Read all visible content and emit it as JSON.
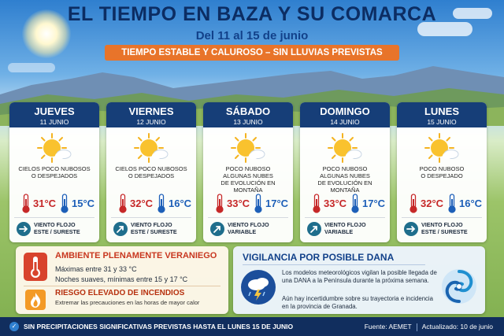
{
  "header": {
    "title": "EL TIEMPO EN BAZA Y SU COMARCA",
    "subtitle": "Del 11 al 15 de junio",
    "banner": "TIEMPO ESTABLE Y CALUROSO – SIN LLUVIAS PREVISTAS"
  },
  "days": [
    {
      "day": "JUEVES",
      "date": "11 JUNIO",
      "cond1": "CIELOS POCO NUBOSOS",
      "cond2": "O DESPEJADOS",
      "cond3": "",
      "tmax": "31°C",
      "tmin": "15°C",
      "wind1": "VIENTO FLOJO",
      "wind2": "ESTE / SURESTE",
      "wind_icon": "arrow-right-icon"
    },
    {
      "day": "VIERNES",
      "date": "12 JUNIO",
      "cond1": "CIELOS POCO NUBOSOS",
      "cond2": "O DESPEJADOS",
      "cond3": "",
      "tmax": "32°C",
      "tmin": "16°C",
      "wind1": "VIENTO FLOJO",
      "wind2": "ESTE / SURESTE",
      "wind_icon": "arrow-up-right-icon"
    },
    {
      "day": "SÁBADO",
      "date": "13 JUNIO",
      "cond1": "POCO NUBOSO",
      "cond2": "ALGUNAS NUBES",
      "cond3": "DE EVOLUCIÓN EN MONTAÑA",
      "tmax": "33°C",
      "tmin": "17°C",
      "wind1": "VIENTO FLOJO",
      "wind2": "VARIABLE",
      "wind_icon": "arrow-up-right-icon"
    },
    {
      "day": "DOMINGO",
      "date": "14 JUNIO",
      "cond1": "POCO NUBOSO",
      "cond2": "ALGUNAS NUBES",
      "cond3": "DE EVOLUCIÓN EN MONTAÑA",
      "tmax": "33°C",
      "tmin": "17°C",
      "wind1": "VIENTO FLOJO",
      "wind2": "VARIABLE",
      "wind_icon": "arrow-up-right-icon"
    },
    {
      "day": "LUNES",
      "date": "15 JUNIO",
      "cond1": "POCO NUBOSO",
      "cond2": "O DESPEJADO",
      "cond3": "",
      "tmax": "32°C",
      "tmin": "16°C",
      "wind1": "VIENTO FLOJO",
      "wind2": "ESTE / SURESTE",
      "wind_icon": "arrow-right-icon"
    }
  ],
  "heat": {
    "title": "AMBIENTE PLENAMENTE VERANIEGO",
    "line1": "Máximas entre 31 y 33 °C",
    "line2": "Noches suaves, mínimas entre 15 y 17 °C",
    "fire_title": "RIESGO ELEVADO DE INCENDIOS",
    "fire_text": "Extremar las precauciones en las horas de mayor calor"
  },
  "dana": {
    "title": "VIGILANCIA POR POSIBLE DANA",
    "p1": "Los modelos meteorológicos vigilan la posible llegada de una DANA a la Península durante la próxima semana.",
    "p2": "Aún hay incertidumbre sobre su trayectoria e incidencia en la provincia de Granada."
  },
  "footer": {
    "left": "SIN PRECIPITACIONES SIGNIFICATIVAS PREVISTAS HASTA EL LUNES 15 DE JUNIO",
    "source": "Fuente: AEMET",
    "updated": "Actualizado: 10 de junio"
  },
  "colors": {
    "accent": "#163e78",
    "banner": "#e8742a",
    "hot": "#c62828",
    "cool": "#1d5fb8"
  }
}
